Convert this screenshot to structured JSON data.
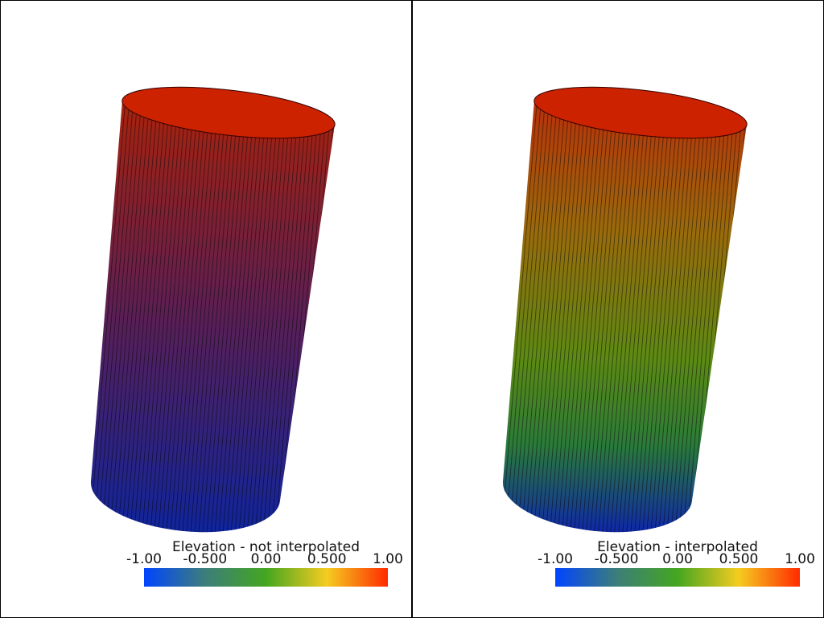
{
  "panels": [
    {
      "title": "Elevation - not interpolated",
      "range": [
        -1,
        1
      ],
      "ticks": [
        {
          "value": -1,
          "label": "-1.00"
        },
        {
          "value": -0.5,
          "label": "-0.500"
        },
        {
          "value": 0,
          "label": "0.00"
        },
        {
          "value": 0.5,
          "label": "0.500"
        },
        {
          "value": 1,
          "label": "1.00"
        }
      ]
    },
    {
      "title": "Elevation - interpolated",
      "range": [
        -1,
        1
      ],
      "ticks": [
        {
          "value": -1,
          "label": "-1.00"
        },
        {
          "value": -0.5,
          "label": "-0.500"
        },
        {
          "value": 0,
          "label": "0.00"
        },
        {
          "value": 0.5,
          "label": "0.500"
        },
        {
          "value": 1,
          "label": "1.00"
        }
      ]
    }
  ]
}
